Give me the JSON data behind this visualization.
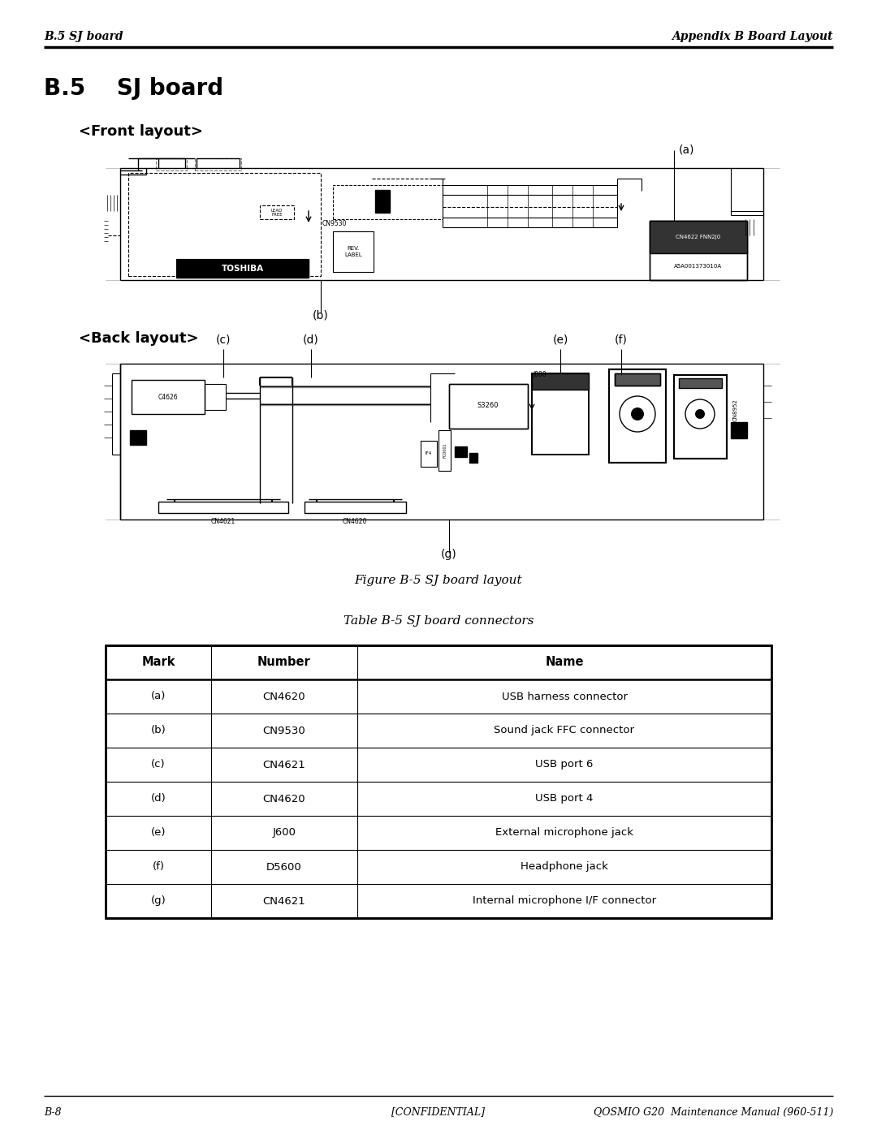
{
  "page_title_left": "B.5 SJ board",
  "page_title_right": "Appendix B Board Layout",
  "section_title": "B.5    SJ board",
  "front_label": "<Front layout>",
  "back_label": "<Back layout>",
  "figure_caption": "Figure B-5 SJ board layout",
  "table_title": "Table B-5 SJ board connectors",
  "table_headers": [
    "Mark",
    "Number",
    "Name"
  ],
  "table_rows": [
    [
      "(a)",
      "CN4620",
      "USB harness connector"
    ],
    [
      "(b)",
      "CN9530",
      "Sound jack FFC connector"
    ],
    [
      "(c)",
      "CN4621",
      "USB port 6"
    ],
    [
      "(d)",
      "CN4620",
      "USB port 4"
    ],
    [
      "(e)",
      "J600",
      "External microphone jack"
    ],
    [
      "(f)",
      "D5600",
      "Headphone jack"
    ],
    [
      "(g)",
      "CN4621",
      "Internal microphone I/F connector"
    ]
  ],
  "footer_left": "B-8",
  "footer_center": "[CONFIDENTIAL]",
  "footer_right": "QOSMIO G20  Maintenance Manual (960-511)",
  "bg_color": "#ffffff",
  "text_color": "#000000"
}
